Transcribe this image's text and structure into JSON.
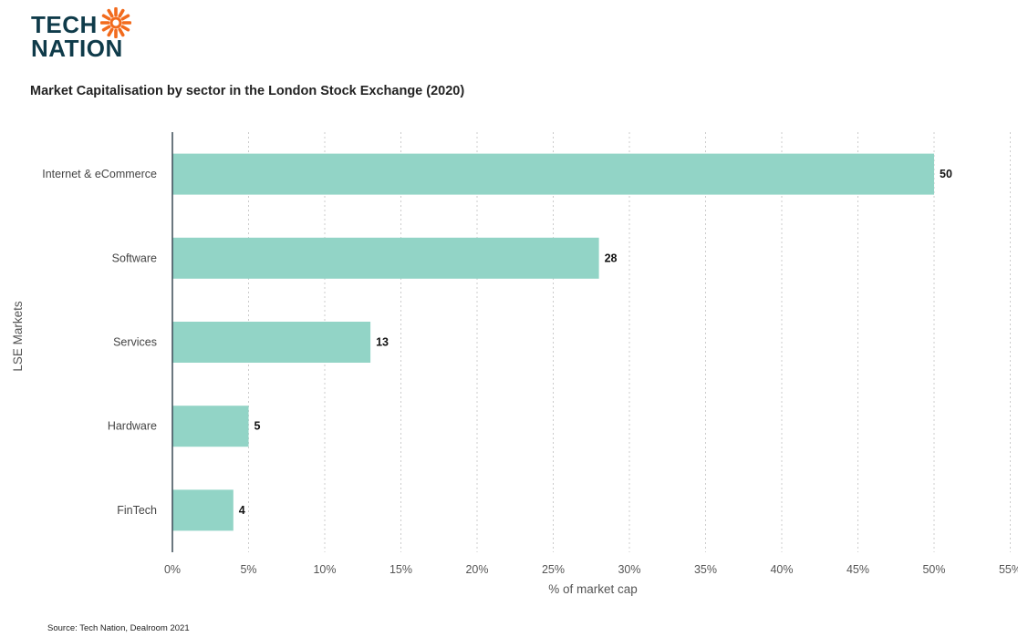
{
  "logo": {
    "line1": "TECH",
    "line2": "NATION"
  },
  "colors": {
    "bar": "#92d4c6",
    "logo_text": "#0f3b4a",
    "logo_sun": "#f26b1d",
    "grid": "#cccccc",
    "axis": "#3a4a55"
  },
  "chart_data": {
    "type": "bar",
    "orientation": "horizontal",
    "title": "Market Capitalisation by sector in the London Stock Exchange (2020)",
    "categories": [
      "Internet & eCommerce",
      "Software",
      "Services",
      "Hardware",
      "FinTech"
    ],
    "values": [
      50,
      28,
      13,
      5,
      4
    ],
    "value_labels": [
      "50",
      "28",
      "13",
      "5",
      "4"
    ],
    "xlabel": "% of market cap",
    "ylabel": "LSE Markets",
    "xlim": [
      0,
      55
    ],
    "x_ticks": [
      0,
      5,
      10,
      15,
      20,
      25,
      30,
      35,
      40,
      45,
      50,
      55
    ],
    "x_tick_labels": [
      "0%",
      "5%",
      "10%",
      "15%",
      "20%",
      "25%",
      "30%",
      "35%",
      "40%",
      "45%",
      "50%",
      "55%"
    ],
    "grid": "vertical dotted",
    "legend": "none"
  },
  "source": "Source: Tech Nation, Dealroom 2021"
}
